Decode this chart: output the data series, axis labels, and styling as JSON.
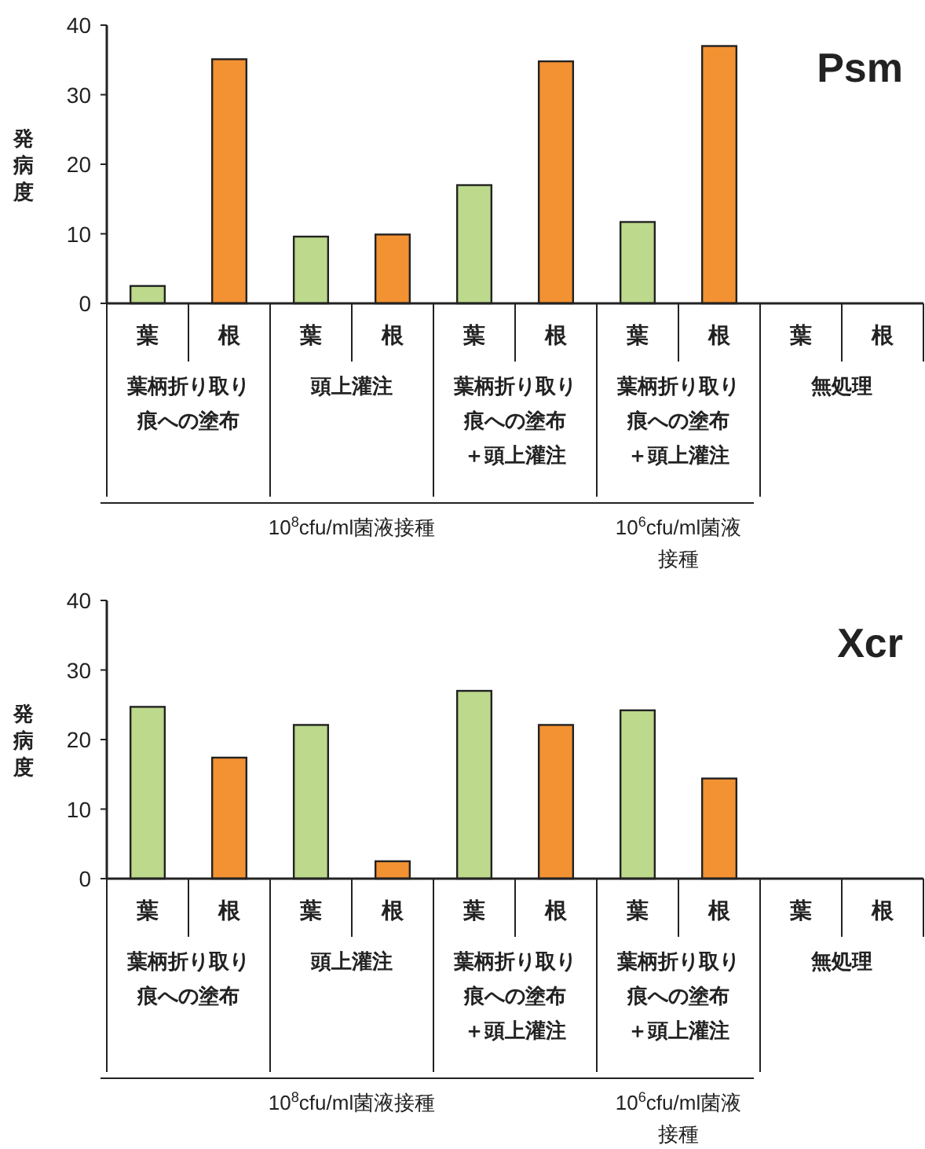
{
  "chart_data": [
    {
      "type": "bar",
      "title": "Psm",
      "ylabel": "発病度",
      "categories": [
        "葉",
        "根",
        "葉",
        "根",
        "葉",
        "根",
        "葉",
        "根",
        "葉",
        "根"
      ],
      "values": [
        2.5,
        35.1,
        9.6,
        9.9,
        17.0,
        34.8,
        11.7,
        37.0,
        0,
        0
      ],
      "colors": [
        "#bcd98c",
        "#f39232",
        "#bcd98c",
        "#f39232",
        "#bcd98c",
        "#f39232",
        "#bcd98c",
        "#f39232",
        "#bcd98c",
        "#f39232"
      ],
      "ylim": [
        0,
        40
      ],
      "yticks": [
        0,
        10,
        20,
        30,
        40
      ],
      "annotations": [
        "葉柄折り取り痕への塗布",
        "頭上灌注",
        "葉柄折り取り痕への塗布＋頭上灌注",
        "葉柄折り取り痕への塗布＋頭上灌注",
        "無処理",
        "10$^{8}$cfu/ml菌液接種",
        "10$^{6}$cfu/ml菌液接種"
      ]
    },
    {
      "type": "bar",
      "title": "Xcr",
      "ylabel": "発病度",
      "categories": [
        "葉",
        "根",
        "葉",
        "根",
        "葉",
        "根",
        "葉",
        "根",
        "葉",
        "根"
      ],
      "values": [
        24.7,
        17.4,
        22.1,
        2.5,
        27.0,
        22.1,
        24.2,
        14.4,
        0,
        0
      ],
      "colors": [
        "#bcd98c",
        "#f39232",
        "#bcd98c",
        "#f39232",
        "#bcd98c",
        "#f39232",
        "#bcd98c",
        "#f39232",
        "#bcd98c",
        "#f39232"
      ],
      "ylim": [
        0,
        40
      ],
      "yticks": [
        0,
        10,
        20,
        30,
        40
      ],
      "annotations": [
        "葉柄折り取り痕への塗布",
        "頭上灌注",
        "葉柄折り取り痕への塗布＋頭上灌注",
        "葉柄折り取り痕への塗布＋頭上灌注",
        "無処理",
        "10$^{8}$cfu/ml菌液接種",
        "10$^{6}$cfu/ml菌液接種"
      ]
    }
  ]
}
